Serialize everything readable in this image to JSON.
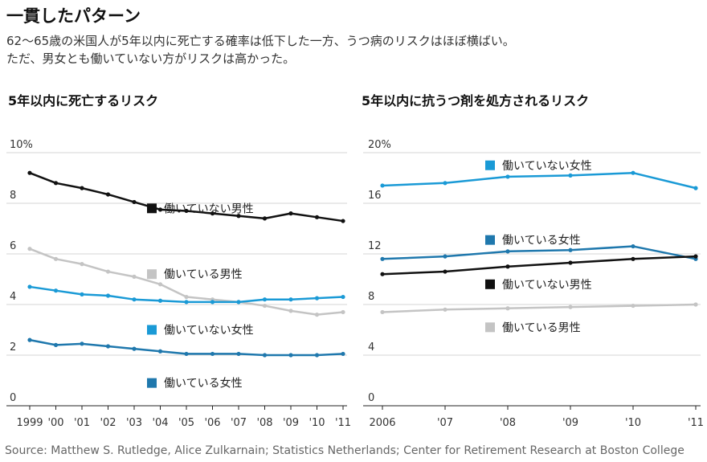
{
  "header": {
    "title": "一貫したパターン",
    "subtitle_line1": "62～65歳の米国人が5年以内に死亡する確率は低下した一方、うつ病のリスクはほぼ横ばい。",
    "subtitle_line2": "ただ、男女とも働いていない方がリスクは高かった。"
  },
  "source": "Source: Matthew S. Rutledge, Alice Zulkarnain; Statistics Netherlands; Center for Retirement Research at Boston College",
  "colors": {
    "not_working_men": "#111111",
    "working_men": "#c4c4c4",
    "not_working_women": "#1a9ad6",
    "working_women": "#1f78ad"
  },
  "chart_data": [
    {
      "type": "line",
      "title": "5年以内に死亡するリスク",
      "categories": [
        "1999",
        "'00",
        "'01",
        "'02",
        "'03",
        "'04",
        "'05",
        "'06",
        "'07",
        "'08",
        "'09",
        "'10",
        "'11"
      ],
      "ylim": [
        0,
        10
      ],
      "yticks": [
        "0",
        "2",
        "4",
        "6",
        "8",
        "10%"
      ],
      "grid": true,
      "series": [
        {
          "key": "not_working_men",
          "name": "働いていない男性",
          "values": [
            9.2,
            8.8,
            8.6,
            8.35,
            8.05,
            7.75,
            7.7,
            7.6,
            7.5,
            7.4,
            7.6,
            7.45,
            7.3
          ]
        },
        {
          "key": "working_men",
          "name": "働いている男性",
          "values": [
            6.2,
            5.8,
            5.6,
            5.3,
            5.1,
            4.8,
            4.3,
            4.2,
            4.1,
            3.95,
            3.75,
            3.6,
            3.7
          ]
        },
        {
          "key": "not_working_women",
          "name": "働いていない女性",
          "values": [
            4.7,
            4.55,
            4.4,
            4.35,
            4.2,
            4.15,
            4.1,
            4.1,
            4.1,
            4.2,
            4.2,
            4.25,
            4.3
          ]
        },
        {
          "key": "working_women",
          "name": "働いている女性",
          "values": [
            2.6,
            2.4,
            2.45,
            2.35,
            2.25,
            2.15,
            2.05,
            2.05,
            2.05,
            2.0,
            2.0,
            2.0,
            2.05
          ]
        }
      ],
      "legend_order": [
        "not_working_men",
        "working_men",
        "not_working_women",
        "working_women"
      ],
      "legend_y_values": [
        7.8,
        5.2,
        3.0,
        0.9
      ]
    },
    {
      "type": "line",
      "title": "5年以内に抗うつ剤を処方されるリスク",
      "categories": [
        "2006",
        "'07",
        "'08",
        "'09",
        "'10",
        "'11"
      ],
      "ylim": [
        0,
        20
      ],
      "yticks": [
        "0",
        "4",
        "8",
        "12",
        "16",
        "20%"
      ],
      "grid": true,
      "series": [
        {
          "key": "not_working_women",
          "name": "働いていない女性",
          "values": [
            17.4,
            17.6,
            18.1,
            18.2,
            18.4,
            17.2
          ]
        },
        {
          "key": "working_women",
          "name": "働いている女性",
          "values": [
            11.6,
            11.8,
            12.2,
            12.3,
            12.6,
            11.6
          ]
        },
        {
          "key": "not_working_men",
          "name": "働いていない男性",
          "values": [
            10.4,
            10.6,
            11.0,
            11.3,
            11.6,
            11.8
          ]
        },
        {
          "key": "working_men",
          "name": "働いている男性",
          "values": [
            7.4,
            7.6,
            7.7,
            7.8,
            7.9,
            8.0
          ]
        }
      ],
      "legend_order": [
        "not_working_women",
        "working_women",
        "not_working_men",
        "working_men"
      ],
      "legend_y_values": [
        19.0,
        13.1,
        9.6,
        6.2
      ]
    }
  ]
}
